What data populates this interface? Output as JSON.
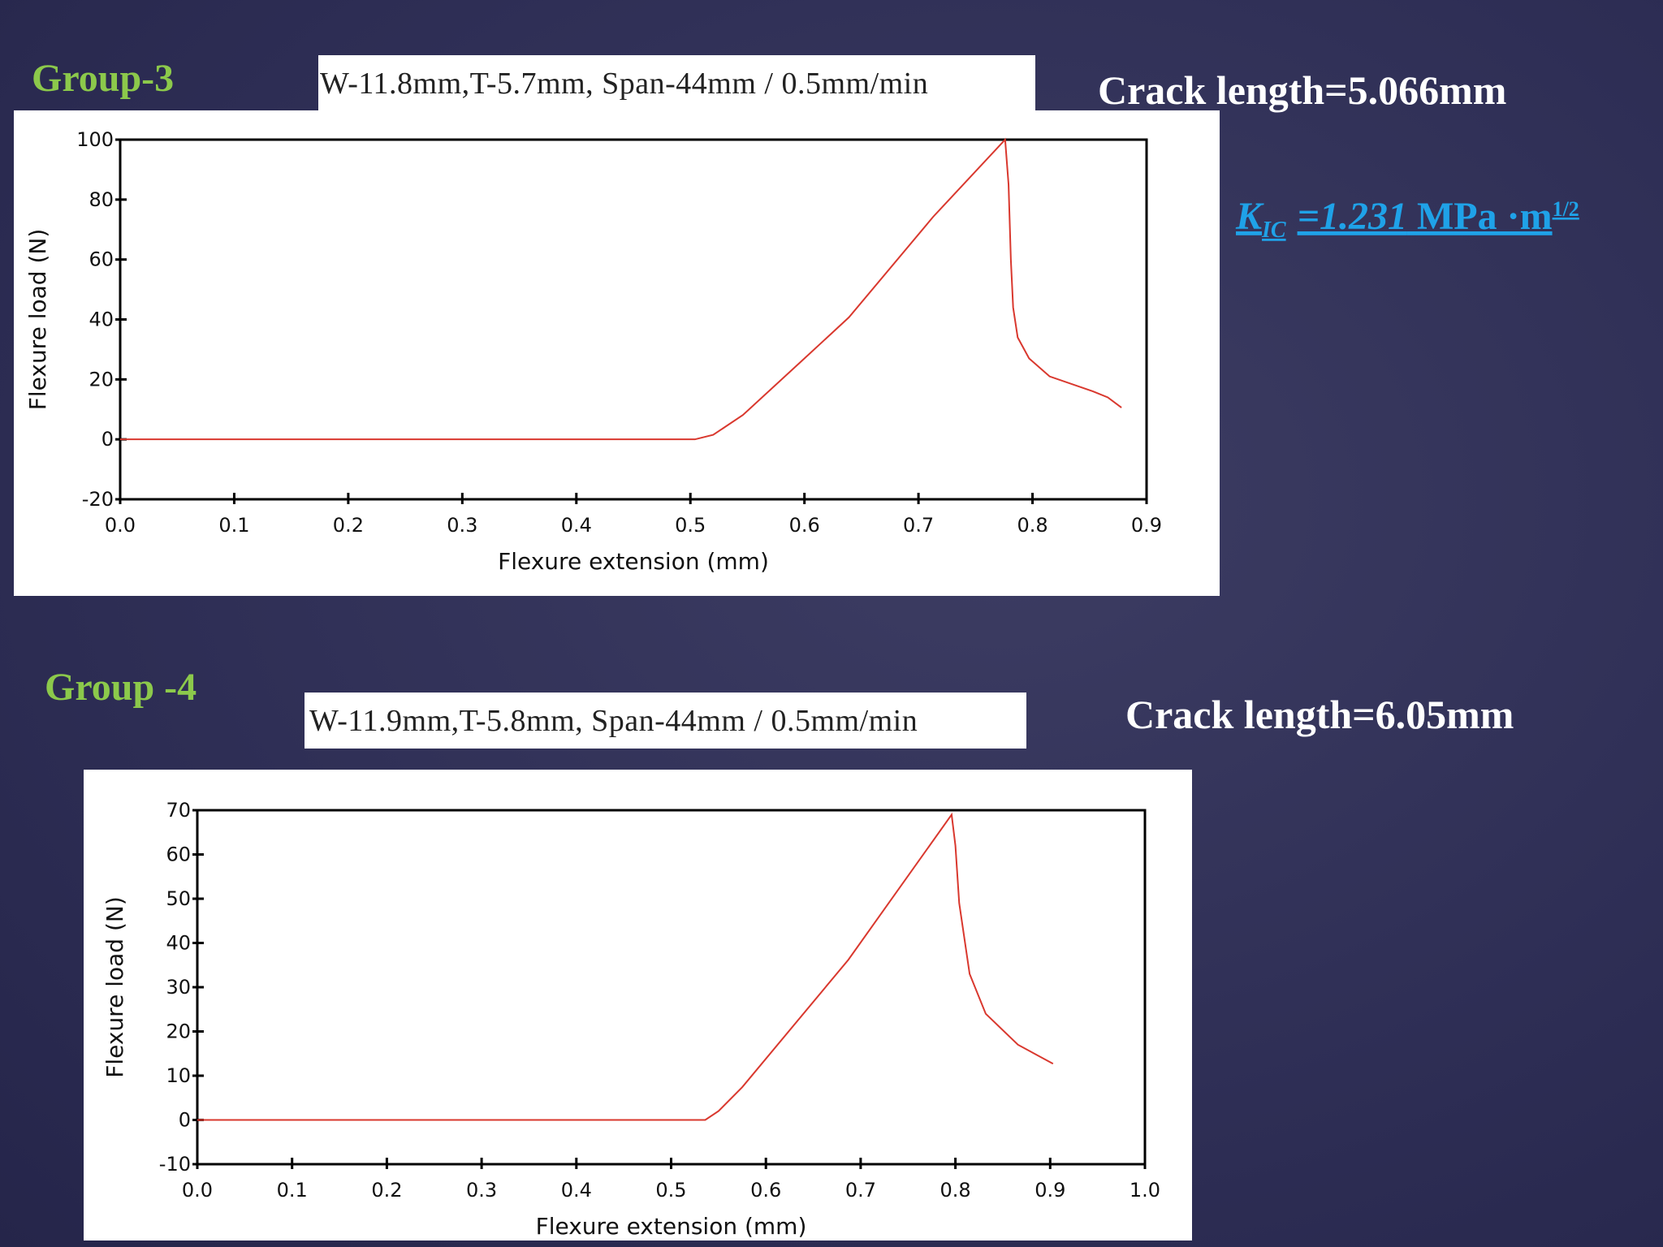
{
  "slide": {
    "panels": [
      {
        "group": "Group-3",
        "conditions": "W-11.8mm,T-5.7mm, Span-44mm / 0.5mm/min",
        "crack_length": "Crack length=5.066mm"
      },
      {
        "group": "Group -4",
        "conditions": "W-11.9mm,T-5.8mm, Span-44mm / 0.5mm/min",
        "crack_length": "Crack length=6.05mm"
      }
    ],
    "kic": {
      "symbol": "K",
      "subscript": "IC",
      "value": "=1.231",
      "unit": " MPa ·m",
      "exponent": "1/2"
    }
  },
  "chart_data": [
    {
      "type": "line",
      "xlabel": "Flexure extension (mm)",
      "ylabel": "Flexure load (N)",
      "color": "#d9382e",
      "x": [
        0,
        0.5,
        0.504,
        0.52,
        0.546,
        0.6,
        0.639,
        0.713,
        0.776,
        0.779,
        0.781,
        0.783,
        0.787,
        0.797,
        0.815,
        0.853,
        0.866,
        0.878
      ],
      "values": [
        0,
        0,
        0,
        1.5,
        8.1,
        27,
        40.7,
        74.3,
        100,
        85,
        60,
        44,
        34,
        27,
        21,
        16,
        14,
        10.6
      ],
      "xlim": [
        0,
        0.9
      ],
      "ylim": [
        -20,
        100
      ],
      "xticks": [
        {
          "value": 0,
          "label": "0.0"
        },
        0.1,
        0.2,
        0.3,
        0.4,
        0.5,
        0.6,
        0.7,
        0.8,
        0.9
      ],
      "yticks": [
        -20,
        0,
        20,
        40,
        60,
        80,
        100
      ]
    },
    {
      "type": "line",
      "xlabel": "Flexure extension (mm)",
      "ylabel": "Flexure load (N)",
      "color": "#d9382e",
      "x": [
        0,
        0.536,
        0.55,
        0.575,
        0.687,
        0.796,
        0.8,
        0.804,
        0.815,
        0.832,
        0.866,
        0.903
      ],
      "values": [
        0,
        0,
        2,
        7.4,
        36.2,
        69,
        62,
        49,
        33,
        24,
        17,
        12.7
      ],
      "xlim": [
        0,
        1
      ],
      "ylim": [
        -10,
        70
      ],
      "xticks": [
        {
          "value": 0,
          "label": "0.0"
        },
        0.1,
        0.2,
        0.3,
        0.4,
        0.5,
        0.6,
        0.7,
        0.8,
        0.9,
        {
          "value": 1,
          "label": "1.0"
        }
      ],
      "yticks": [
        -10,
        0,
        10,
        20,
        30,
        40,
        50,
        60,
        70
      ]
    }
  ]
}
